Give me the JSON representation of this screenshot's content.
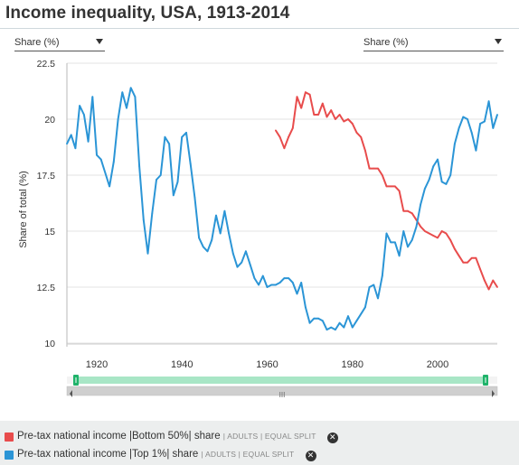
{
  "page": {
    "title": "Income inequality, USA, 1913-2014"
  },
  "controls": {
    "left_select": {
      "value": "Share (%)"
    },
    "right_select": {
      "value": "Share (%)"
    }
  },
  "chart_data": {
    "type": "line",
    "title": "Income inequality, USA, 1913-2014",
    "xlabel": "",
    "ylabel": "Share of total (%)",
    "xlim": [
      1913,
      2014
    ],
    "ylim": [
      10,
      22.5
    ],
    "yticks": [
      10,
      12.5,
      15,
      17.5,
      20,
      22.5
    ],
    "ytick_labels": [
      "10",
      "12.5",
      "15",
      "17.5",
      "20",
      "22.5"
    ],
    "xticks": [
      1920,
      1940,
      1960,
      1980,
      2000
    ],
    "xtick_labels": [
      "1920",
      "1940",
      "1960",
      "1980",
      "2000"
    ],
    "grid": true,
    "series": [
      {
        "name": "Pre-tax national income | Bottom 50% | share",
        "color": "#e84c4c",
        "points": [
          [
            1962,
            19.5
          ],
          [
            1963,
            19.2
          ],
          [
            1964,
            18.7
          ],
          [
            1965,
            19.2
          ],
          [
            1966,
            19.6
          ],
          [
            1967,
            21.0
          ],
          [
            1968,
            20.5
          ],
          [
            1969,
            21.2
          ],
          [
            1970,
            21.1
          ],
          [
            1971,
            20.2
          ],
          [
            1972,
            20.2
          ],
          [
            1973,
            20.7
          ],
          [
            1974,
            20.1
          ],
          [
            1975,
            20.4
          ],
          [
            1976,
            20.0
          ],
          [
            1977,
            20.2
          ],
          [
            1978,
            19.9
          ],
          [
            1979,
            20.0
          ],
          [
            1980,
            19.8
          ],
          [
            1981,
            19.4
          ],
          [
            1982,
            19.2
          ],
          [
            1983,
            18.6
          ],
          [
            1984,
            17.8
          ],
          [
            1985,
            17.8
          ],
          [
            1986,
            17.8
          ],
          [
            1987,
            17.5
          ],
          [
            1988,
            17.0
          ],
          [
            1989,
            17.0
          ],
          [
            1990,
            17.0
          ],
          [
            1991,
            16.8
          ],
          [
            1992,
            15.9
          ],
          [
            1993,
            15.9
          ],
          [
            1994,
            15.8
          ],
          [
            1995,
            15.5
          ],
          [
            1996,
            15.2
          ],
          [
            1997,
            15.0
          ],
          [
            1998,
            14.9
          ],
          [
            1999,
            14.8
          ],
          [
            2000,
            14.7
          ],
          [
            2001,
            15.0
          ],
          [
            2002,
            14.9
          ],
          [
            2003,
            14.6
          ],
          [
            2004,
            14.2
          ],
          [
            2005,
            13.9
          ],
          [
            2006,
            13.6
          ],
          [
            2007,
            13.6
          ],
          [
            2008,
            13.8
          ],
          [
            2009,
            13.8
          ],
          [
            2010,
            13.3
          ],
          [
            2011,
            12.8
          ],
          [
            2012,
            12.4
          ],
          [
            2013,
            12.8
          ],
          [
            2014,
            12.5
          ]
        ]
      },
      {
        "name": "Pre-tax national income | Top 1% | share",
        "color": "#2b95d6",
        "points": [
          [
            1913,
            18.9
          ],
          [
            1914,
            19.3
          ],
          [
            1915,
            18.7
          ],
          [
            1916,
            20.6
          ],
          [
            1917,
            20.2
          ],
          [
            1918,
            19.0
          ],
          [
            1919,
            21.0
          ],
          [
            1920,
            18.4
          ],
          [
            1921,
            18.2
          ],
          [
            1922,
            17.6
          ],
          [
            1923,
            17.0
          ],
          [
            1924,
            18.1
          ],
          [
            1925,
            20.0
          ],
          [
            1926,
            21.2
          ],
          [
            1927,
            20.5
          ],
          [
            1928,
            21.4
          ],
          [
            1929,
            21.0
          ],
          [
            1930,
            17.9
          ],
          [
            1931,
            15.5
          ],
          [
            1932,
            14.0
          ],
          [
            1933,
            15.8
          ],
          [
            1934,
            17.3
          ],
          [
            1935,
            17.5
          ],
          [
            1936,
            19.2
          ],
          [
            1937,
            18.9
          ],
          [
            1938,
            16.6
          ],
          [
            1939,
            17.2
          ],
          [
            1940,
            19.2
          ],
          [
            1941,
            19.4
          ],
          [
            1942,
            18.0
          ],
          [
            1943,
            16.5
          ],
          [
            1944,
            14.7
          ],
          [
            1945,
            14.3
          ],
          [
            1946,
            14.1
          ],
          [
            1947,
            14.6
          ],
          [
            1948,
            15.7
          ],
          [
            1949,
            14.9
          ],
          [
            1950,
            15.9
          ],
          [
            1951,
            14.9
          ],
          [
            1952,
            14.0
          ],
          [
            1953,
            13.4
          ],
          [
            1954,
            13.6
          ],
          [
            1955,
            14.1
          ],
          [
            1956,
            13.5
          ],
          [
            1957,
            12.9
          ],
          [
            1958,
            12.6
          ],
          [
            1959,
            13.0
          ],
          [
            1960,
            12.5
          ],
          [
            1961,
            12.6
          ],
          [
            1962,
            12.6
          ],
          [
            1963,
            12.7
          ],
          [
            1964,
            12.9
          ],
          [
            1965,
            12.9
          ],
          [
            1966,
            12.7
          ],
          [
            1967,
            12.2
          ],
          [
            1968,
            12.7
          ],
          [
            1969,
            11.6
          ],
          [
            1970,
            10.9
          ],
          [
            1971,
            11.1
          ],
          [
            1972,
            11.1
          ],
          [
            1973,
            11.0
          ],
          [
            1974,
            10.6
          ],
          [
            1975,
            10.7
          ],
          [
            1976,
            10.6
          ],
          [
            1977,
            10.9
          ],
          [
            1978,
            10.7
          ],
          [
            1979,
            11.2
          ],
          [
            1980,
            10.7
          ],
          [
            1981,
            11.0
          ],
          [
            1982,
            11.3
          ],
          [
            1983,
            11.6
          ],
          [
            1984,
            12.5
          ],
          [
            1985,
            12.6
          ],
          [
            1986,
            12.0
          ],
          [
            1987,
            13.0
          ],
          [
            1988,
            14.9
          ],
          [
            1989,
            14.5
          ],
          [
            1990,
            14.5
          ],
          [
            1991,
            13.9
          ],
          [
            1992,
            15.0
          ],
          [
            1993,
            14.3
          ],
          [
            1994,
            14.6
          ],
          [
            1995,
            15.2
          ],
          [
            1996,
            16.2
          ],
          [
            1997,
            16.9
          ],
          [
            1998,
            17.3
          ],
          [
            1999,
            17.9
          ],
          [
            2000,
            18.2
          ],
          [
            2001,
            17.2
          ],
          [
            2002,
            17.1
          ],
          [
            2003,
            17.5
          ],
          [
            2004,
            18.9
          ],
          [
            2005,
            19.6
          ],
          [
            2006,
            20.1
          ],
          [
            2007,
            20.0
          ],
          [
            2008,
            19.4
          ],
          [
            2009,
            18.6
          ],
          [
            2010,
            19.8
          ],
          [
            2011,
            19.9
          ],
          [
            2012,
            20.8
          ],
          [
            2013,
            19.6
          ],
          [
            2014,
            20.2
          ]
        ]
      }
    ]
  },
  "legend": {
    "items": [
      {
        "color": "#e84c4c",
        "text": "Pre-tax national income  |Bottom 50%| share",
        "sub": "| ADULTS | EQUAL SPLIT"
      },
      {
        "color": "#2b95d6",
        "text": "Pre-tax national income  |Top 1%| share",
        "sub": "| ADULTS | EQUAL SPLIT"
      }
    ]
  },
  "scroll": {
    "middle_label": "III"
  }
}
